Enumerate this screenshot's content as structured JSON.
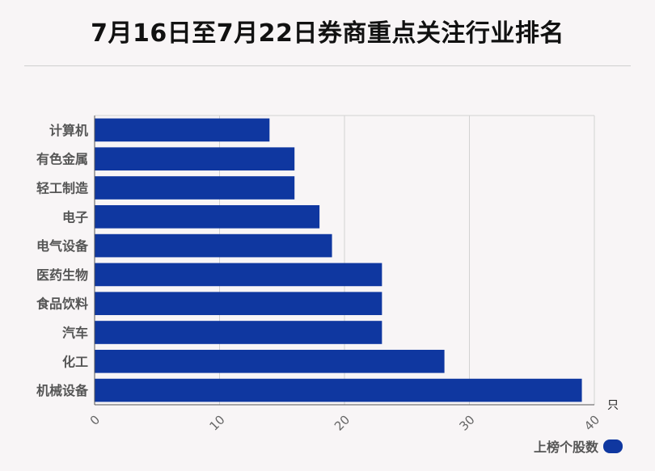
{
  "page": {
    "title": "7月16日至7月22日券商重点关注行业排名"
  },
  "colors": {
    "bar": "#0f37a0",
    "grid": "#d2d2d2",
    "axis": "#555555",
    "label": "#555555"
  },
  "chart_data": {
    "type": "bar",
    "orientation": "horizontal",
    "title": "7月16日至7月22日券商重点关注行业排名",
    "categories": [
      "计算机",
      "有色金属",
      "轻工制造",
      "电子",
      "电气设备",
      "医药生物",
      "食品饮料",
      "汽车",
      "化工",
      "机械设备"
    ],
    "series": [
      {
        "name": "上榜个股数",
        "values": [
          14,
          16,
          16,
          18,
          19,
          23,
          23,
          23,
          28,
          39
        ]
      }
    ],
    "xlim": [
      0,
      40
    ],
    "xticks": [
      0,
      10,
      20,
      30,
      40
    ],
    "xlabel": "只",
    "ylabel": "",
    "grid": true,
    "legend_position": "bottom-right"
  }
}
